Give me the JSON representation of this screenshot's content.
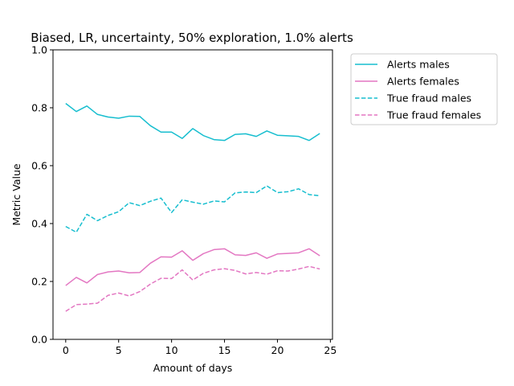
{
  "chart_data": {
    "type": "line",
    "title": "Biased, LR, uncertainty, 50% exploration, 1.0% alerts",
    "xlabel": "Amount of days",
    "ylabel": "Metric Value",
    "xlim": [
      -1.2,
      25.2
    ],
    "ylim": [
      0,
      1.0
    ],
    "xticks": [
      0,
      5,
      10,
      15,
      20,
      25
    ],
    "yticks": [
      0.0,
      0.2,
      0.4,
      0.6,
      0.8,
      1.0
    ],
    "xtick_labels": [
      "0",
      "5",
      "10",
      "15",
      "20",
      "25"
    ],
    "ytick_labels": [
      "0.0",
      "0.2",
      "0.4",
      "0.6",
      "0.8",
      "1.0"
    ],
    "grid": false,
    "legend_position": "outside-right-top",
    "x": [
      0,
      1,
      2,
      3,
      4,
      5,
      6,
      7,
      8,
      9,
      10,
      11,
      12,
      13,
      14,
      15,
      16,
      17,
      18,
      19,
      20,
      21,
      22,
      23,
      24
    ],
    "series": [
      {
        "name": "Alerts males",
        "color": "#17becf",
        "dash": "solid",
        "values": [
          0.815,
          0.787,
          0.806,
          0.777,
          0.768,
          0.764,
          0.771,
          0.77,
          0.738,
          0.716,
          0.716,
          0.694,
          0.728,
          0.704,
          0.69,
          0.687,
          0.708,
          0.71,
          0.701,
          0.72,
          0.705,
          0.703,
          0.701,
          0.687,
          0.711
        ]
      },
      {
        "name": "Alerts females",
        "color": "#e377c2",
        "dash": "solid",
        "values": [
          0.186,
          0.214,
          0.195,
          0.224,
          0.233,
          0.236,
          0.23,
          0.231,
          0.263,
          0.285,
          0.284,
          0.306,
          0.273,
          0.296,
          0.31,
          0.313,
          0.292,
          0.29,
          0.299,
          0.28,
          0.295,
          0.297,
          0.299,
          0.313,
          0.289
        ]
      },
      {
        "name": "True fraud males",
        "color": "#17becf",
        "dash": "dashed",
        "values": [
          0.39,
          0.37,
          0.432,
          0.41,
          0.428,
          0.441,
          0.472,
          0.462,
          0.477,
          0.488,
          0.438,
          0.482,
          0.474,
          0.467,
          0.478,
          0.475,
          0.506,
          0.509,
          0.507,
          0.53,
          0.507,
          0.51,
          0.52,
          0.5,
          0.496
        ]
      },
      {
        "name": "True fraud females",
        "color": "#e377c2",
        "dash": "dashed",
        "values": [
          0.097,
          0.12,
          0.122,
          0.125,
          0.152,
          0.16,
          0.15,
          0.165,
          0.191,
          0.211,
          0.21,
          0.24,
          0.205,
          0.228,
          0.24,
          0.244,
          0.238,
          0.226,
          0.231,
          0.225,
          0.237,
          0.236,
          0.243,
          0.252,
          0.243
        ]
      }
    ]
  }
}
